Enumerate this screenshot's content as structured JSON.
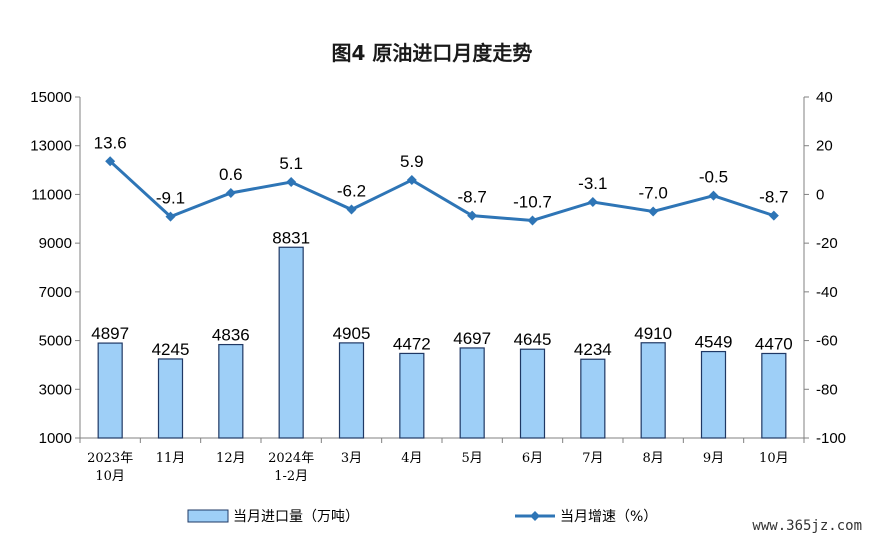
{
  "chart_data": {
    "type": "bar",
    "title": "图4  原油进口月度走势",
    "categories": [
      [
        "2023年",
        "10月"
      ],
      [
        "11月"
      ],
      [
        "12月"
      ],
      [
        "2024年",
        "1-2月"
      ],
      [
        "3月"
      ],
      [
        "4月"
      ],
      [
        "5月"
      ],
      [
        "6月"
      ],
      [
        "7月"
      ],
      [
        "8月"
      ],
      [
        "9月"
      ],
      [
        "10月"
      ]
    ],
    "series": [
      {
        "name": "当月进口量（万吨）",
        "type": "bar",
        "axis": "left",
        "values": [
          4897,
          4245,
          4836,
          8831,
          4905,
          4472,
          4697,
          4645,
          4234,
          4910,
          4549,
          4470
        ],
        "labels": [
          "4897",
          "4245",
          "4836",
          "8831",
          "4905",
          "4472",
          "4697",
          "4645",
          "4234",
          "4910",
          "4549",
          "4470"
        ],
        "color": "#9ecff7",
        "border": "#1f3864"
      },
      {
        "name": "当月增速（%）",
        "type": "line",
        "axis": "right",
        "values": [
          13.6,
          -9.1,
          0.6,
          5.1,
          -6.2,
          5.9,
          -8.7,
          -10.7,
          -3.1,
          -7.0,
          -0.5,
          -8.7
        ],
        "labels": [
          "13.6",
          "-9.1",
          "0.6",
          "5.1",
          "-6.2",
          "5.9",
          "-8.7",
          "-10.7",
          "-3.1",
          "-7.0",
          "-0.5",
          "-8.7"
        ],
        "color": "#2e75b6"
      }
    ],
    "left_axis": {
      "ylim": [
        1000,
        15000
      ],
      "ticks": [
        1000,
        3000,
        5000,
        7000,
        9000,
        11000,
        13000,
        15000
      ],
      "tick_labels": [
        "1000",
        "3000",
        "5000",
        "7000",
        "9000",
        "11000",
        "13000",
        "15000"
      ]
    },
    "right_axis": {
      "ylim": [
        -100,
        40
      ],
      "ticks": [
        -100,
        -80,
        -60,
        -40,
        -20,
        0,
        20,
        40
      ],
      "tick_labels": [
        "-100",
        "-80",
        "-60",
        "-40",
        "-20",
        "0",
        "20",
        "40"
      ]
    },
    "grid": false,
    "legend": "bottom"
  },
  "watermark": "www.365jz.com"
}
